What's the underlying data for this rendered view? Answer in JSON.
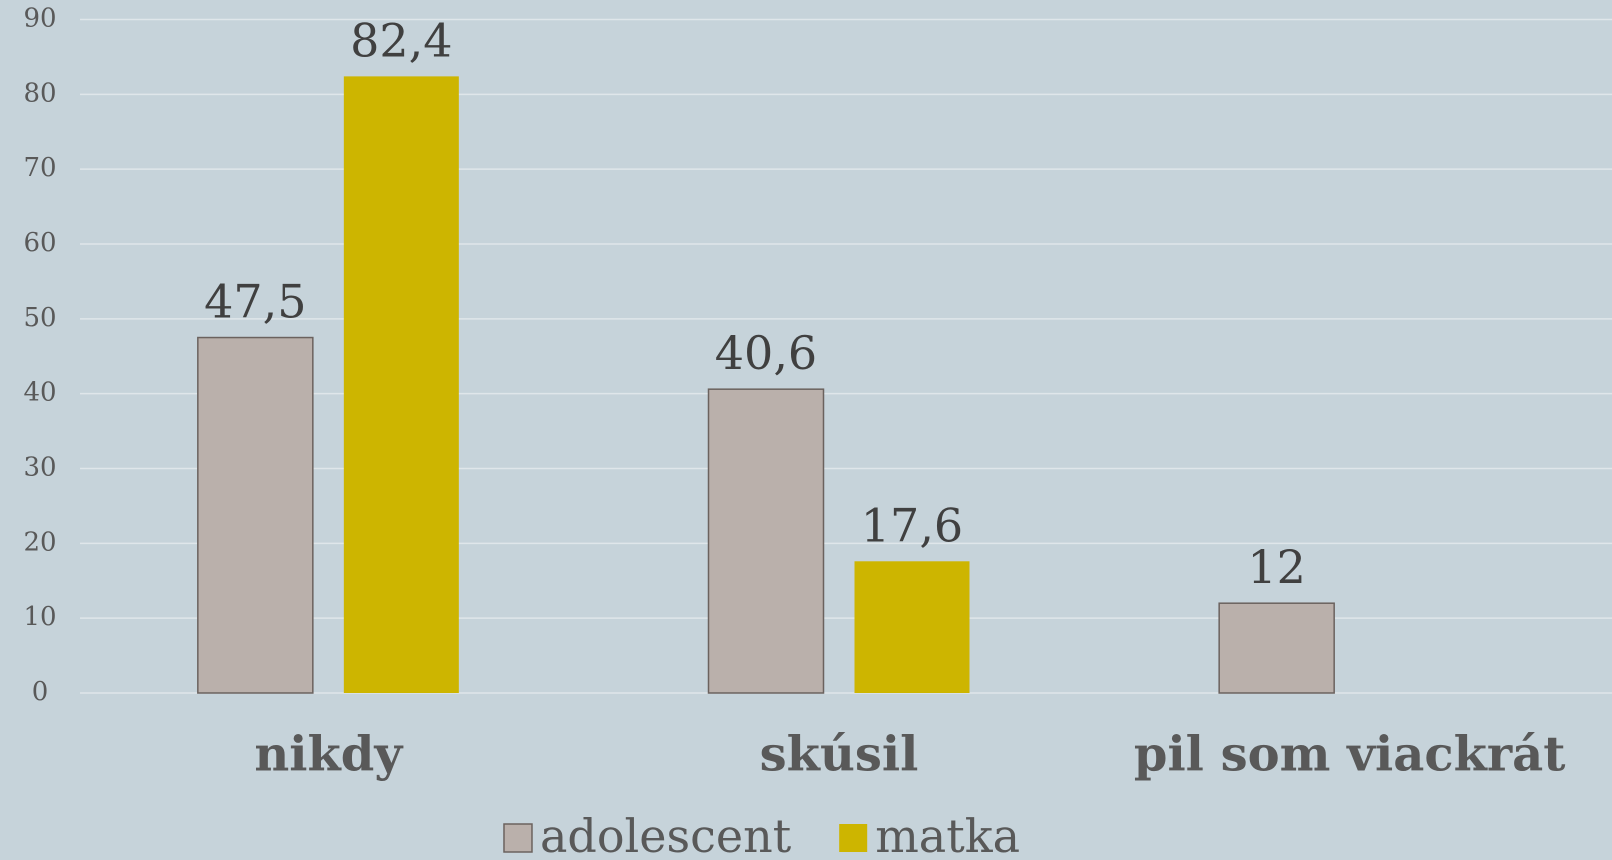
{
  "chart_data": {
    "type": "bar",
    "categories": [
      "nikdy",
      "skúsil",
      "pil som viackrát"
    ],
    "series": [
      {
        "name": "adolescent",
        "color": "#bab0ab",
        "values": [
          47.5,
          40.6,
          12
        ],
        "value_labels": [
          "47,5",
          "40,6",
          "12"
        ]
      },
      {
        "name": "matka",
        "color": "#cdb500",
        "values": [
          82.4,
          17.6,
          null
        ],
        "value_labels": [
          "82,4",
          "17,6",
          null
        ]
      }
    ],
    "ylim": [
      0,
      90
    ],
    "yticks": [
      0,
      10,
      20,
      30,
      40,
      50,
      60,
      70,
      80,
      90
    ],
    "grid": true,
    "legend": "bottom"
  }
}
